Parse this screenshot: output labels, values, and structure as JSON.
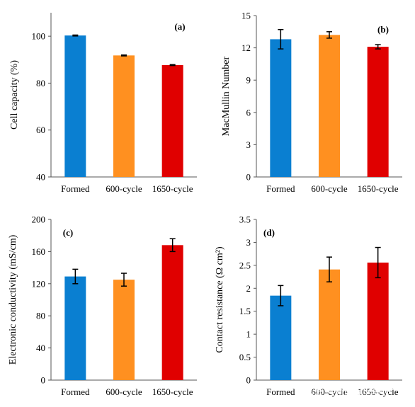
{
  "chart_data": [
    {
      "type": "bar",
      "panel": "(a)",
      "categories": [
        "Formed",
        "600-cycle",
        "1650-cycle"
      ],
      "values": [
        100.3,
        91.8,
        87.7
      ],
      "errors": [
        0.2,
        0.2,
        0.2
      ],
      "colors": [
        "#0a7fd1",
        "#ff9020",
        "#e00000"
      ],
      "ylabel": "Cell capacity (%)",
      "ylim": [
        40,
        110
      ],
      "yticks": [
        40,
        60,
        80,
        100
      ]
    },
    {
      "type": "bar",
      "panel": "(b)",
      "categories": [
        "Formed",
        "600-cycle",
        "1650-cycle"
      ],
      "values": [
        12.8,
        13.2,
        12.1
      ],
      "errors": [
        0.9,
        0.3,
        0.2
      ],
      "colors": [
        "#0a7fd1",
        "#ff9020",
        "#e00000"
      ],
      "ylabel": "MacMullin Number",
      "ylim": [
        0,
        15
      ],
      "yticks": [
        0,
        3,
        6,
        9,
        12,
        15
      ]
    },
    {
      "type": "bar",
      "panel": "(c)",
      "categories": [
        "Formed",
        "600-cycle",
        "1650-cycle"
      ],
      "values": [
        129,
        125,
        168
      ],
      "errors": [
        9,
        8,
        8
      ],
      "colors": [
        "#0a7fd1",
        "#ff9020",
        "#e00000"
      ],
      "ylabel": "Electronic conductivity (mS/cm)",
      "ylim": [
        0,
        200
      ],
      "yticks": [
        0,
        40,
        80,
        120,
        160,
        200
      ]
    },
    {
      "type": "bar",
      "panel": "(d)",
      "categories": [
        "Formed",
        "600-cycle",
        "1650-cycle"
      ],
      "values": [
        1.84,
        2.41,
        2.56
      ],
      "errors": [
        0.22,
        0.27,
        0.33
      ],
      "colors": [
        "#0a7fd1",
        "#ff9020",
        "#e00000"
      ],
      "ylabel": "Contact resistance (Ω cm²)",
      "ylim": [
        0,
        3.5
      ],
      "yticks": [
        0,
        0.5,
        1,
        1.5,
        2,
        2.5,
        3,
        3.5
      ]
    }
  ],
  "watermark": "头条 @新能源Leader"
}
